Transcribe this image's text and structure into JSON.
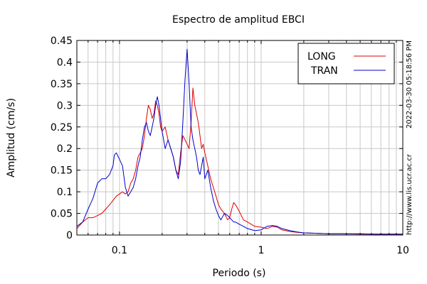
{
  "chart_data": {
    "type": "line",
    "title": "Espectro de amplitud EBCI",
    "xlabel": "Periodo (s)",
    "ylabel": "Amplitud (cm/s)",
    "xscale": "log",
    "xlim": [
      0.05,
      10
    ],
    "ylim": [
      0,
      0.45
    ],
    "x_ticks": [
      {
        "value": 0.1,
        "label": "0.1"
      },
      {
        "value": 1,
        "label": "1"
      },
      {
        "value": 10,
        "label": "10"
      }
    ],
    "y_ticks": [
      {
        "value": 0,
        "label": "0"
      },
      {
        "value": 0.05,
        "label": "0.05"
      },
      {
        "value": 0.1,
        "label": "0.1"
      },
      {
        "value": 0.15,
        "label": "0.15"
      },
      {
        "value": 0.2,
        "label": "0.2"
      },
      {
        "value": 0.25,
        "label": "0.25"
      },
      {
        "value": 0.3,
        "label": "0.3"
      },
      {
        "value": 0.35,
        "label": "0.35"
      },
      {
        "value": 0.4,
        "label": "0.4"
      },
      {
        "value": 0.45,
        "label": "0.45"
      }
    ],
    "grid": true,
    "legend_position": "top-right",
    "series": [
      {
        "name": "LONG",
        "color": "#dd0000",
        "x": [
          0.05,
          0.055,
          0.06,
          0.065,
          0.07,
          0.075,
          0.08,
          0.085,
          0.09,
          0.095,
          0.1,
          0.105,
          0.11,
          0.115,
          0.12,
          0.125,
          0.13,
          0.135,
          0.14,
          0.145,
          0.15,
          0.155,
          0.16,
          0.165,
          0.17,
          0.175,
          0.18,
          0.185,
          0.19,
          0.195,
          0.2,
          0.21,
          0.22,
          0.23,
          0.24,
          0.25,
          0.26,
          0.27,
          0.28,
          0.29,
          0.3,
          0.31,
          0.32,
          0.33,
          0.34,
          0.35,
          0.36,
          0.37,
          0.38,
          0.39,
          0.4,
          0.42,
          0.44,
          0.46,
          0.48,
          0.5,
          0.52,
          0.55,
          0.58,
          0.6,
          0.62,
          0.64,
          0.66,
          0.7,
          0.75,
          0.8,
          0.9,
          1.0,
          1.1,
          1.2,
          1.3,
          1.4,
          1.6,
          1.8,
          2.0,
          2.5,
          3.0,
          4.0,
          5.0,
          6.0,
          8.0,
          10.0
        ],
        "values": [
          0.015,
          0.03,
          0.04,
          0.04,
          0.045,
          0.05,
          0.06,
          0.07,
          0.08,
          0.09,
          0.095,
          0.1,
          0.095,
          0.1,
          0.12,
          0.13,
          0.15,
          0.18,
          0.19,
          0.2,
          0.23,
          0.27,
          0.3,
          0.29,
          0.27,
          0.28,
          0.31,
          0.3,
          0.28,
          0.25,
          0.24,
          0.25,
          0.22,
          0.2,
          0.18,
          0.15,
          0.14,
          0.19,
          0.23,
          0.22,
          0.21,
          0.2,
          0.26,
          0.34,
          0.3,
          0.28,
          0.26,
          0.23,
          0.2,
          0.21,
          0.19,
          0.16,
          0.13,
          0.11,
          0.09,
          0.07,
          0.06,
          0.05,
          0.035,
          0.04,
          0.06,
          0.075,
          0.07,
          0.055,
          0.035,
          0.03,
          0.02,
          0.018,
          0.015,
          0.02,
          0.018,
          0.012,
          0.008,
          0.006,
          0.005,
          0.004,
          0.003,
          0.003,
          0.002,
          0.002,
          0.002,
          0.002
        ]
      },
      {
        "name": "TRAN",
        "color": "#0000cc",
        "x": [
          0.05,
          0.055,
          0.06,
          0.065,
          0.07,
          0.075,
          0.08,
          0.085,
          0.09,
          0.092,
          0.095,
          0.1,
          0.105,
          0.11,
          0.115,
          0.12,
          0.125,
          0.13,
          0.135,
          0.14,
          0.145,
          0.15,
          0.155,
          0.16,
          0.165,
          0.17,
          0.175,
          0.18,
          0.185,
          0.19,
          0.195,
          0.2,
          0.21,
          0.22,
          0.23,
          0.24,
          0.25,
          0.26,
          0.27,
          0.28,
          0.29,
          0.3,
          0.31,
          0.32,
          0.33,
          0.34,
          0.35,
          0.36,
          0.37,
          0.38,
          0.39,
          0.4,
          0.42,
          0.44,
          0.46,
          0.48,
          0.5,
          0.52,
          0.55,
          0.58,
          0.6,
          0.62,
          0.64,
          0.66,
          0.7,
          0.75,
          0.8,
          0.9,
          1.0,
          1.1,
          1.2,
          1.3,
          1.4,
          1.6,
          1.8,
          2.0,
          2.5,
          3.0,
          4.0,
          5.0,
          6.0,
          8.0,
          10.0
        ],
        "values": [
          0.02,
          0.03,
          0.06,
          0.085,
          0.12,
          0.13,
          0.13,
          0.14,
          0.16,
          0.185,
          0.19,
          0.175,
          0.16,
          0.11,
          0.09,
          0.1,
          0.11,
          0.13,
          0.16,
          0.18,
          0.22,
          0.25,
          0.26,
          0.24,
          0.23,
          0.25,
          0.27,
          0.3,
          0.32,
          0.3,
          0.27,
          0.24,
          0.2,
          0.22,
          0.2,
          0.18,
          0.15,
          0.13,
          0.17,
          0.26,
          0.36,
          0.43,
          0.35,
          0.25,
          0.22,
          0.2,
          0.18,
          0.15,
          0.14,
          0.16,
          0.18,
          0.13,
          0.15,
          0.11,
          0.08,
          0.06,
          0.045,
          0.035,
          0.05,
          0.045,
          0.04,
          0.035,
          0.03,
          0.03,
          0.025,
          0.02,
          0.015,
          0.01,
          0.012,
          0.02,
          0.022,
          0.02,
          0.015,
          0.01,
          0.007,
          0.005,
          0.004,
          0.003,
          0.003,
          0.003,
          0.002,
          0.002,
          0.002
        ]
      }
    ],
    "side_text": {
      "timestamp": "2022-03-30 05:18:56 PM",
      "url": "http://www.lis.ucr.ac.cr"
    }
  }
}
